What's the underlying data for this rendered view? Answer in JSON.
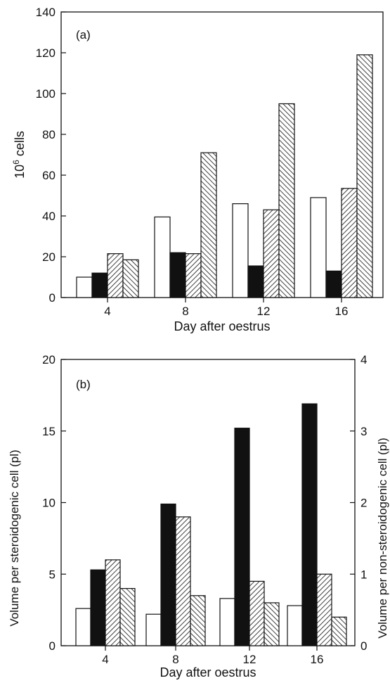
{
  "chart_data": [
    {
      "type": "bar",
      "panel_label": "(a)",
      "categories": [
        "4",
        "8",
        "12",
        "16"
      ],
      "series": [
        {
          "fill": "white",
          "values": [
            10,
            39.5,
            46,
            49
          ]
        },
        {
          "fill": "black",
          "values": [
            12,
            22,
            15.5,
            13
          ]
        },
        {
          "fill": "hatch-forward",
          "values": [
            21.5,
            21.5,
            43,
            53.5
          ]
        },
        {
          "fill": "hatch-back",
          "values": [
            18.5,
            71,
            95,
            119
          ]
        }
      ],
      "xlabel": "Day after oestrus",
      "ylabel": "10",
      "ylabel_superscript": "6",
      "ylabel_suffix": " cells",
      "ylim": [
        0,
        140
      ],
      "yticks": [
        "0",
        "20",
        "40",
        "60",
        "80",
        "100",
        "120",
        "140"
      ],
      "grid": false,
      "legend": "none"
    },
    {
      "type": "bar",
      "panel_label": "(b)",
      "categories": [
        "4",
        "8",
        "12",
        "16"
      ],
      "series": [
        {
          "fill": "white",
          "axis": "left",
          "values": [
            2.6,
            2.2,
            3.3,
            2.8
          ]
        },
        {
          "fill": "black",
          "axis": "left",
          "values": [
            5.3,
            9.9,
            15.2,
            16.9
          ]
        },
        {
          "fill": "hatch-forward",
          "axis": "left",
          "values": [
            6.0,
            9.0,
            4.5,
            5.0
          ]
        },
        {
          "fill": "hatch-back",
          "axis": "left",
          "values": [
            4.0,
            3.5,
            3.0,
            2.0
          ]
        }
      ],
      "xlabel": "Day after oestrus",
      "ylabel": "Volume per steroidogenic cell (pl)",
      "ylabel_right": "Volume per non-steroidogenic cell (pl)",
      "ylim": [
        0,
        20
      ],
      "ylim_right": [
        0,
        4
      ],
      "yticks": [
        "0",
        "5",
        "10",
        "15",
        "20"
      ],
      "yticks_right": [
        "0",
        "1",
        "2",
        "3",
        "4"
      ],
      "grid": false,
      "legend": "none"
    }
  ]
}
